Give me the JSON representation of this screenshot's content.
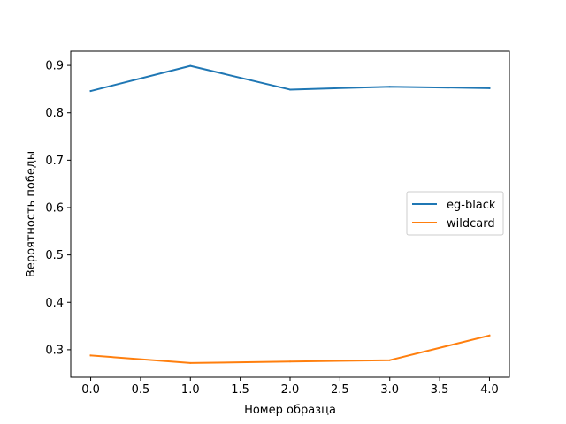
{
  "chart_data": {
    "type": "line",
    "title": "",
    "xlabel": "Номер образца",
    "ylabel": "Вероятность победы",
    "xlim": [
      -0.2,
      4.2
    ],
    "ylim": [
      0.242,
      0.93
    ],
    "xticks": [
      0.0,
      0.5,
      1.0,
      1.5,
      2.0,
      2.5,
      3.0,
      3.5,
      4.0
    ],
    "xtick_labels": [
      "0.0",
      "0.5",
      "1.0",
      "1.5",
      "2.0",
      "2.5",
      "3.0",
      "3.5",
      "4.0"
    ],
    "yticks": [
      0.3,
      0.4,
      0.5,
      0.6,
      0.7,
      0.8,
      0.9
    ],
    "ytick_labels": [
      "0.3",
      "0.4",
      "0.5",
      "0.6",
      "0.7",
      "0.8",
      "0.9"
    ],
    "x": [
      0,
      1,
      2,
      3,
      4
    ],
    "series": [
      {
        "name": "eg-black",
        "color": "#1f77b4",
        "values": [
          0.846,
          0.899,
          0.849,
          0.855,
          0.852
        ]
      },
      {
        "name": "wildcard",
        "color": "#ff7f0e",
        "values": [
          0.288,
          0.272,
          0.275,
          0.278,
          0.33
        ]
      }
    ],
    "legend": {
      "position": "center-right"
    },
    "grid": false
  }
}
